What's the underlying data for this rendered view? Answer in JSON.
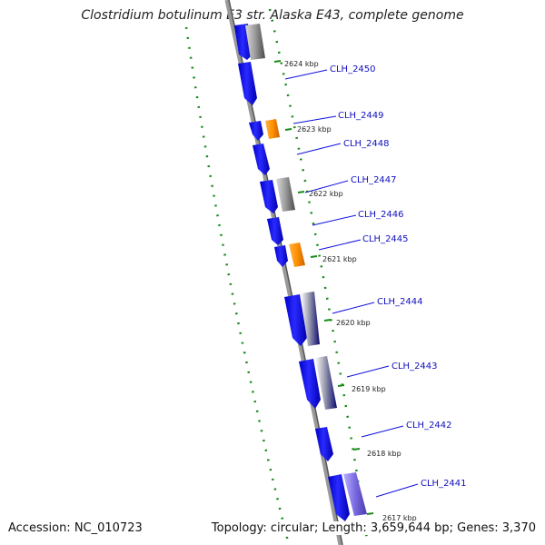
{
  "title": "Clostridium botulinum E3 str. Alaska E43, complete genome",
  "footer": {
    "accession": "Accession: NC_010723",
    "topology": "Topology: circular; Length: 3,659,644 bp; Genes: 3,370"
  },
  "colors": {
    "cds": "#1010ee",
    "rrna_trna": "#ff8c00",
    "orf": "#6e6e6e",
    "backbone": "#888888",
    "tick": "#1a8a1a",
    "label_text": "#1010c0",
    "leader_line": "#1010e0"
  },
  "icons": [
    "genome-backbone",
    "gene-arrow",
    "tick-mark"
  ],
  "kbp_ticks": [
    "2624 kbp",
    "2623 kbp",
    "2622 kbp",
    "2621 kbp",
    "2620 kbp",
    "2619 kbp",
    "2618 kbp",
    "2617 kbp"
  ],
  "genes": [
    "CLH_2450",
    "CLH_2449",
    "CLH_2448",
    "CLH_2447",
    "CLH_2446",
    "CLH_2445",
    "CLH_2444",
    "CLH_2443",
    "CLH_2442",
    "CLH_2441"
  ]
}
